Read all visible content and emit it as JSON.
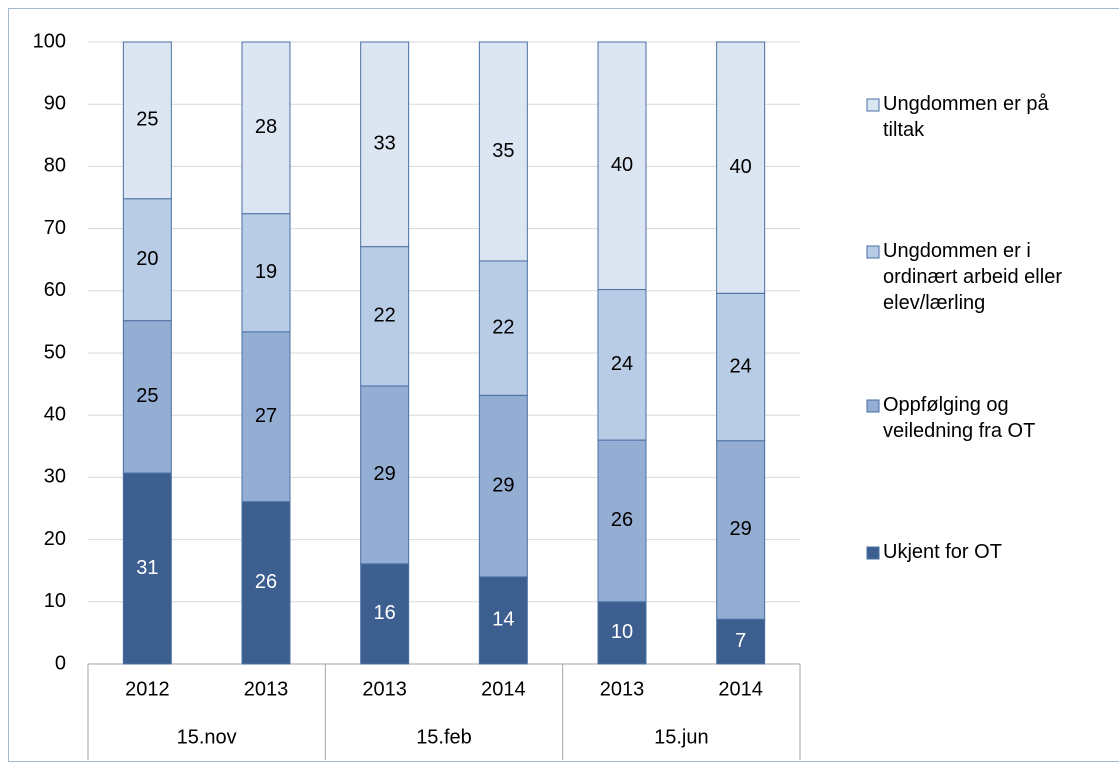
{
  "chart_data": {
    "type": "stacked-bar",
    "groups": [
      {
        "label": "15.nov",
        "categories": [
          "2012",
          "2013"
        ]
      },
      {
        "label": "15.feb",
        "categories": [
          "2013",
          "2014"
        ]
      },
      {
        "label": "15.jun",
        "categories": [
          "2013",
          "2014"
        ]
      }
    ],
    "series": [
      {
        "name": "Ukjent for OT",
        "color": "#3c5f8f",
        "label_color": "#ffffff",
        "values": [
          30.7,
          26.1,
          16.1,
          14.0,
          10.0,
          7.2
        ],
        "value_labels": [
          "31",
          "26",
          "16",
          "14",
          "10",
          "7"
        ]
      },
      {
        "name": "Oppfølging og veiledning fra OT",
        "color": "#93add3",
        "label_color": "#000000",
        "values": [
          24.5,
          27.3,
          28.6,
          29.2,
          26.0,
          28.7
        ],
        "value_labels": [
          "25",
          "27",
          "29",
          "29",
          "26",
          "29"
        ]
      },
      {
        "name": "Ungdommen er i ordinært arbeid eller elev/lærling",
        "color": "#b9cce5",
        "label_color": "#000000",
        "values": [
          19.6,
          19.0,
          22.4,
          21.6,
          24.2,
          23.7
        ],
        "value_labels": [
          "20",
          "19",
          "22",
          "22",
          "24",
          "24"
        ]
      },
      {
        "name": "Ungdommen er på tiltak",
        "color": "#dce6f2",
        "label_color": "#000000",
        "values": [
          25.2,
          27.6,
          32.9,
          35.2,
          39.8,
          40.4
        ],
        "value_labels": [
          "25",
          "28",
          "33",
          "35",
          "40",
          "40"
        ]
      }
    ],
    "ylim": [
      0,
      100
    ],
    "yticks": [
      0,
      10,
      20,
      30,
      40,
      50,
      60,
      70,
      80,
      90,
      100
    ],
    "grid": true,
    "legend": "right"
  }
}
